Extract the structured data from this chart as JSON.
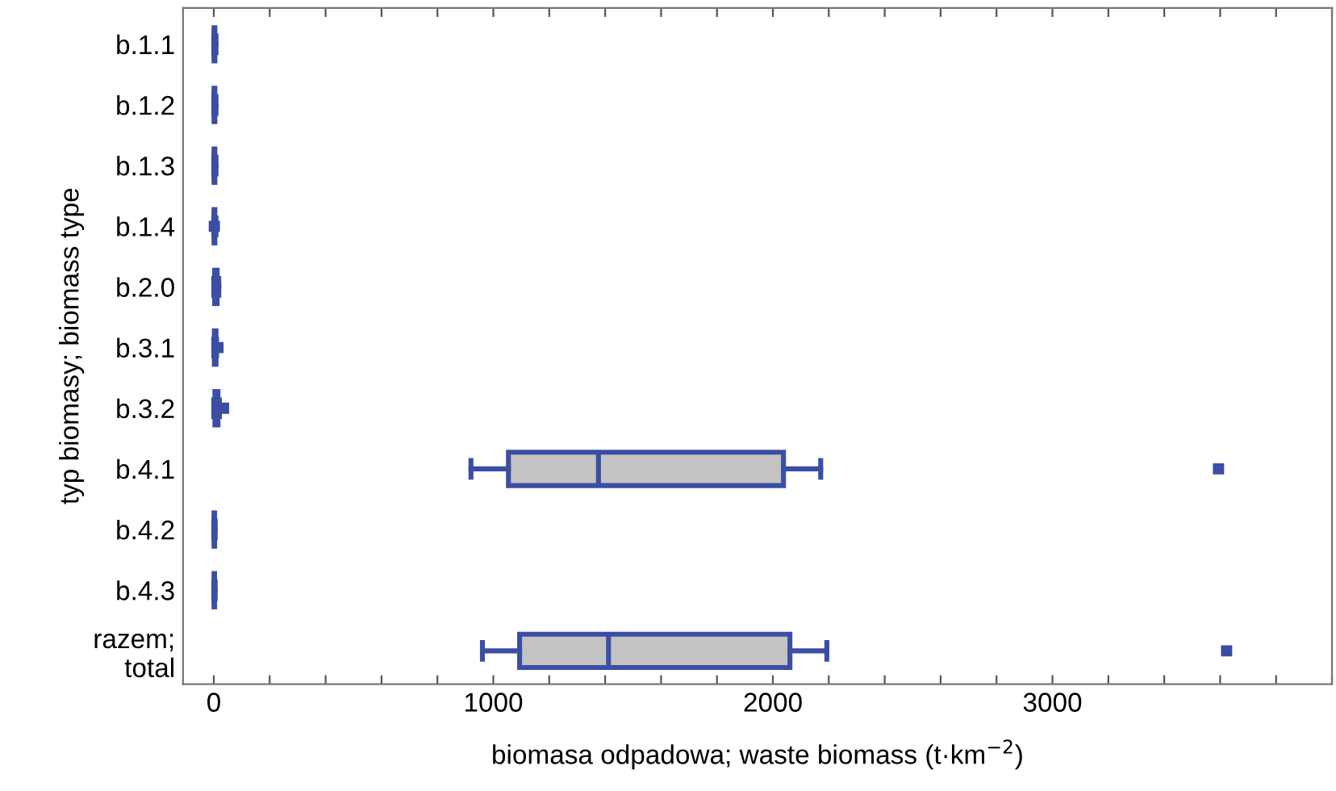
{
  "chart_data": {
    "type": "box",
    "orientation": "horizontal",
    "ylabel": "typ biomasy; biomass type",
    "xlabel": "biomasa odpadowa; waste biomass (t·km$^{−2}$)",
    "categories": [
      "b.1.1",
      "b.1.2",
      "b.1.3",
      "b.1.4",
      "b.2.0",
      "b.3.1",
      "b.3.2",
      "b.4.1",
      "b.4.2",
      "b.4.3",
      "razem;\ntotal"
    ],
    "boxes": [
      {
        "low": 0,
        "q1": 1,
        "median": 2,
        "q3": 4,
        "high": 8
      },
      {
        "low": 0,
        "q1": 1,
        "median": 2,
        "q3": 4,
        "high": 8
      },
      {
        "low": 0,
        "q1": 1,
        "median": 2,
        "q3": 4,
        "high": 8
      },
      {
        "low": 0,
        "q1": 1,
        "median": 2,
        "q3": 4,
        "high": 8,
        "outliers": [
          2
        ]
      },
      {
        "low": 0,
        "q1": 3,
        "median": 6,
        "q3": 12,
        "high": 18
      },
      {
        "low": 0,
        "q1": 2,
        "median": 4,
        "q3": 8,
        "high": 10,
        "outliers": [
          15
        ]
      },
      {
        "low": 0,
        "q1": 4,
        "median": 8,
        "q3": 15,
        "high": 20,
        "outliers": [
          35
        ]
      },
      {
        "low": 920,
        "q1": 1054,
        "median": 1376,
        "q3": 2038,
        "high": 2171,
        "outliers": [
          3594
        ]
      },
      {
        "low": 0,
        "q1": 1,
        "median": 2,
        "q3": 3,
        "high": 5
      },
      {
        "low": 0,
        "q1": 1,
        "median": 2,
        "q3": 3,
        "high": 5
      },
      {
        "low": 961,
        "q1": 1094,
        "median": 1412,
        "q3": 2061,
        "high": 2193,
        "outliers": [
          3623
        ]
      }
    ],
    "color": "#3b4ea3",
    "colors": [
      "#c3c3c3",
      "#c3c3c3",
      "#c3c3c3",
      "#c3c3c3",
      "#c3c3c3",
      "#c3c3c3",
      "#c3c3c3",
      "#c3c3c3",
      "#c3c3c3",
      "#c3c3c3",
      "#c3c3c3"
    ],
    "xlim": [
      -110,
      4000
    ],
    "xticks": [
      0,
      {
        "value": 200,
        "label": null
      },
      {
        "value": 400,
        "label": null
      },
      {
        "value": 600,
        "label": null
      },
      {
        "value": 800,
        "label": null
      },
      1000,
      {
        "value": 1200,
        "label": null
      },
      {
        "value": 1400,
        "label": null
      },
      {
        "value": 1600,
        "label": null
      },
      {
        "value": 1800,
        "label": null
      },
      2000,
      {
        "value": 2200,
        "label": null
      },
      {
        "value": 2400,
        "label": null
      },
      {
        "value": 2600,
        "label": null
      },
      {
        "value": 2800,
        "label": null
      },
      3000,
      {
        "value": 3200,
        "label": null
      },
      {
        "value": 3400,
        "label": null
      },
      {
        "value": 3600,
        "label": null
      },
      {
        "value": 3800,
        "label": null
      },
      {
        "value": 4000,
        "label": null
      }
    ],
    "grid": false,
    "legend": false,
    "marker": "square"
  }
}
